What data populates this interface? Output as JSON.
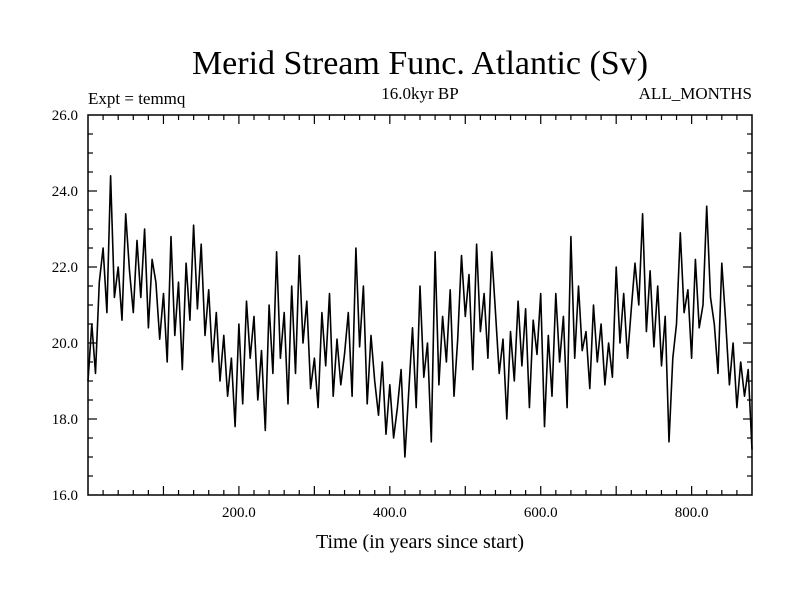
{
  "chart_data": {
    "type": "line",
    "title": "Merid Stream Func. Atlantic (Sv)",
    "subtitle_left": "Expt = temmq",
    "subtitle_center": "16.0kyr BP",
    "subtitle_right": "ALL_MONTHS",
    "xlabel": "Time (in years since start)",
    "ylabel": "",
    "xlim": [
      0,
      880
    ],
    "ylim": [
      16.0,
      26.0
    ],
    "x_ticks": [
      200,
      400,
      600,
      800
    ],
    "x_tick_labels": [
      "200.0",
      "400.0",
      "600.0",
      "800.0"
    ],
    "y_ticks": [
      16,
      18,
      20,
      22,
      24,
      26
    ],
    "y_tick_labels": [
      "16.0",
      "18.0",
      "20.0",
      "22.0",
      "24.0",
      "26.0"
    ],
    "grid": false,
    "series": [
      {
        "color": "#000000",
        "x": [
          0,
          5,
          10,
          15,
          20,
          25,
          30,
          35,
          40,
          45,
          50,
          55,
          60,
          65,
          70,
          75,
          80,
          85,
          90,
          95,
          100,
          105,
          110,
          115,
          120,
          125,
          130,
          135,
          140,
          145,
          150,
          155,
          160,
          165,
          170,
          175,
          180,
          185,
          190,
          195,
          200,
          205,
          210,
          215,
          220,
          225,
          230,
          235,
          240,
          245,
          250,
          255,
          260,
          265,
          270,
          275,
          280,
          285,
          290,
          295,
          300,
          305,
          310,
          315,
          320,
          325,
          330,
          335,
          340,
          345,
          350,
          355,
          360,
          365,
          370,
          375,
          380,
          385,
          390,
          395,
          400,
          405,
          410,
          415,
          420,
          425,
          430,
          435,
          440,
          445,
          450,
          455,
          460,
          465,
          470,
          475,
          480,
          485,
          490,
          495,
          500,
          505,
          510,
          515,
          520,
          525,
          530,
          535,
          540,
          545,
          550,
          555,
          560,
          565,
          570,
          575,
          580,
          585,
          590,
          595,
          600,
          605,
          610,
          615,
          620,
          625,
          630,
          635,
          640,
          645,
          650,
          655,
          660,
          665,
          670,
          675,
          680,
          685,
          690,
          695,
          700,
          705,
          710,
          715,
          720,
          725,
          730,
          735,
          740,
          745,
          750,
          755,
          760,
          765,
          770,
          775,
          780,
          785,
          790,
          795,
          800,
          805,
          810,
          815,
          820,
          825,
          830,
          835,
          840,
          845,
          850,
          855,
          860,
          865,
          870,
          875,
          880
        ],
        "y": [
          19.0,
          20.5,
          19.2,
          21.6,
          22.5,
          20.8,
          24.4,
          21.2,
          22.0,
          20.6,
          23.4,
          21.9,
          20.8,
          22.7,
          21.2,
          23.0,
          20.4,
          22.2,
          21.6,
          20.1,
          21.3,
          19.5,
          22.8,
          20.2,
          21.6,
          19.3,
          22.1,
          20.6,
          23.1,
          20.9,
          22.6,
          20.2,
          21.4,
          19.5,
          20.8,
          19.0,
          20.2,
          18.6,
          19.6,
          17.8,
          20.5,
          18.4,
          21.1,
          19.6,
          20.7,
          18.5,
          19.8,
          17.7,
          21.0,
          19.2,
          22.4,
          19.6,
          20.8,
          18.4,
          21.5,
          19.2,
          22.3,
          20.0,
          21.1,
          18.8,
          19.6,
          18.3,
          20.8,
          19.4,
          21.3,
          18.6,
          20.1,
          18.9,
          19.7,
          20.8,
          18.6,
          22.5,
          19.9,
          21.5,
          18.4,
          20.2,
          19.0,
          18.1,
          19.5,
          17.6,
          18.9,
          17.5,
          18.3,
          19.3,
          17.0,
          18.7,
          20.4,
          18.3,
          21.5,
          19.1,
          20.0,
          17.4,
          22.4,
          18.9,
          20.7,
          19.5,
          21.4,
          18.6,
          20.1,
          22.3,
          20.7,
          21.8,
          19.3,
          22.6,
          20.3,
          21.3,
          19.6,
          22.4,
          20.8,
          19.2,
          20.1,
          18.0,
          20.3,
          19.0,
          21.1,
          19.4,
          20.9,
          18.3,
          20.6,
          19.7,
          21.3,
          17.8,
          20.2,
          18.6,
          21.3,
          19.5,
          20.7,
          18.3,
          22.8,
          19.6,
          21.5,
          19.8,
          20.3,
          18.8,
          21.0,
          19.5,
          20.5,
          18.9,
          20.0,
          19.1,
          22.0,
          20.0,
          21.3,
          19.6,
          20.9,
          22.1,
          21.0,
          23.4,
          20.3,
          21.9,
          19.9,
          21.5,
          19.4,
          20.7,
          17.4,
          19.6,
          20.5,
          22.9,
          20.8,
          21.4,
          19.6,
          22.2,
          20.4,
          21.0,
          23.6,
          21.2,
          20.5,
          19.2,
          22.1,
          20.6,
          18.9,
          20.0,
          18.3,
          19.5,
          18.6,
          19.3,
          17.2
        ]
      }
    ]
  }
}
